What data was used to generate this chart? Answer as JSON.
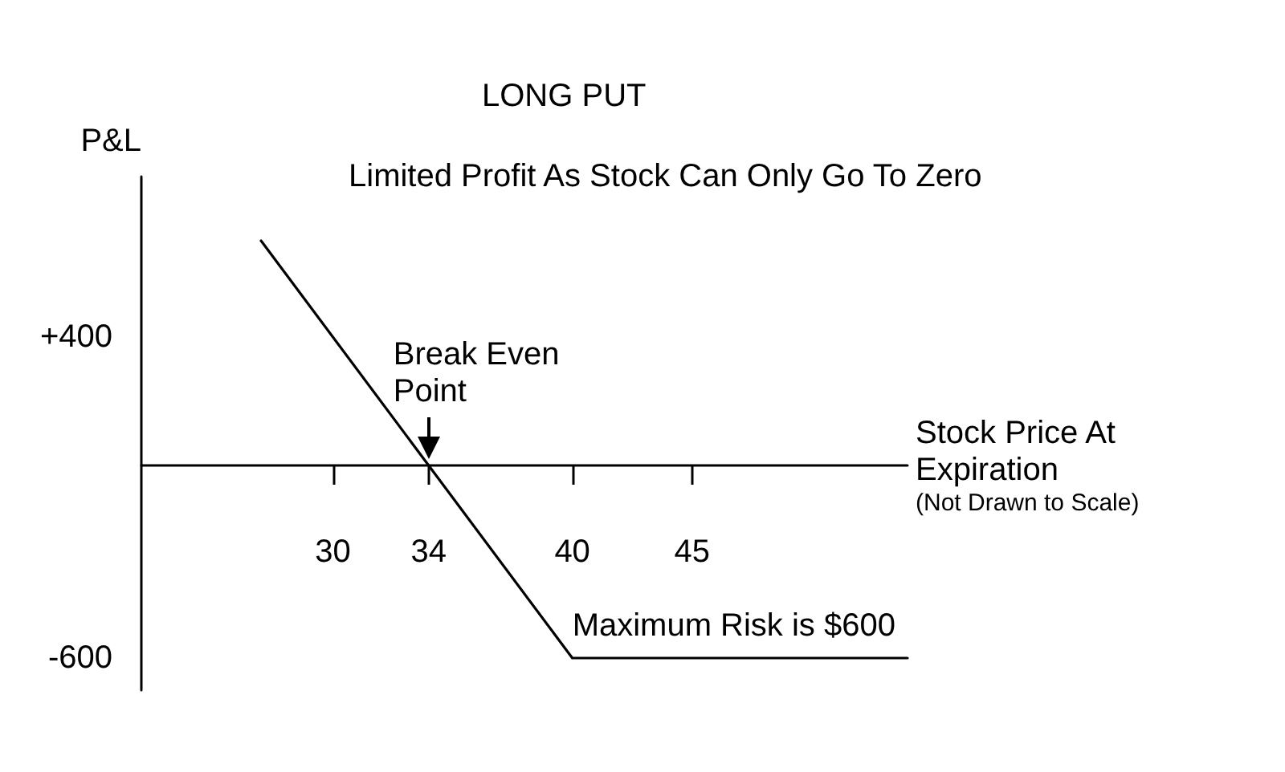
{
  "chart_data": {
    "type": "line",
    "title": "LONG PUT",
    "subtitle": "Limited Profit As Stock Can Only Go To Zero",
    "xlabel": "Stock Price At Expiration",
    "ylabel": "P&L",
    "annotations": [
      {
        "text": "Break Even Point",
        "x": 34,
        "y": 0
      },
      {
        "text": "Maximum Risk is $600",
        "x": 40,
        "y": -600
      },
      "(Not Drawn to Scale)"
    ],
    "x": [
      27,
      34,
      40,
      54
    ],
    "values": [
      700,
      0,
      -600,
      -600
    ],
    "color": "#000000",
    "marker": "none",
    "line_style": "solid",
    "xlim": [
      22,
      54
    ],
    "xticks": [
      30,
      34,
      40,
      45
    ],
    "ylim": [
      -700,
      900
    ],
    "yticks": [
      {
        "value": 400,
        "label": "+400"
      },
      -600
    ]
  }
}
